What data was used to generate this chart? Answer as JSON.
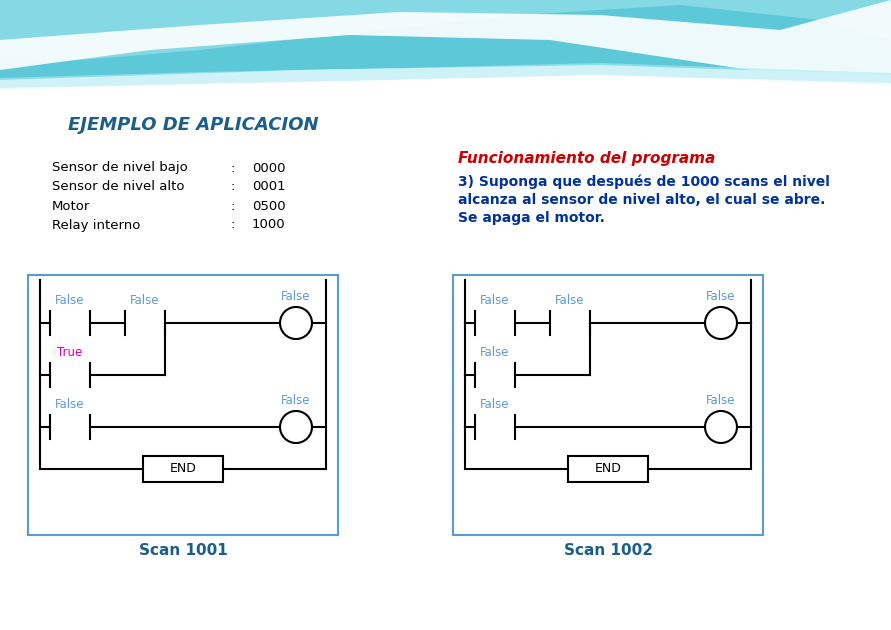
{
  "title": "EJEMPLO DE APLICACION",
  "title_color": "#1B5E8B",
  "title_fontsize": 13,
  "bg_color": "#FFFFFF",
  "labels": [
    "Sensor de nivel bajo",
    "Sensor de nivel alto",
    "Motor",
    "Relay interno"
  ],
  "codes": [
    "0000",
    "0001",
    "0500",
    "1000"
  ],
  "func_title": "Funcionamiento del programa",
  "func_title_color": "#CC0000",
  "func_text_line1": "3) Suponga que después de 1000 scans el nivel",
  "func_text_line2": "alcanza al sensor de nivel alto, el cual se abre.",
  "func_text_line3": "Se apaga el motor.",
  "func_text_color": "#003399",
  "scan1_label": "Scan 1001",
  "scan2_label": "Scan 1002",
  "scan_label_color": "#1B5E8B",
  "diagram_border_color": "#5B9BD5",
  "false_color": "#5B9BD5",
  "true_color": "#CC00CC",
  "wave_color1": "#5CC8D8",
  "wave_color2": "#8DDDE8",
  "wave_color3": "#AEEAF2"
}
